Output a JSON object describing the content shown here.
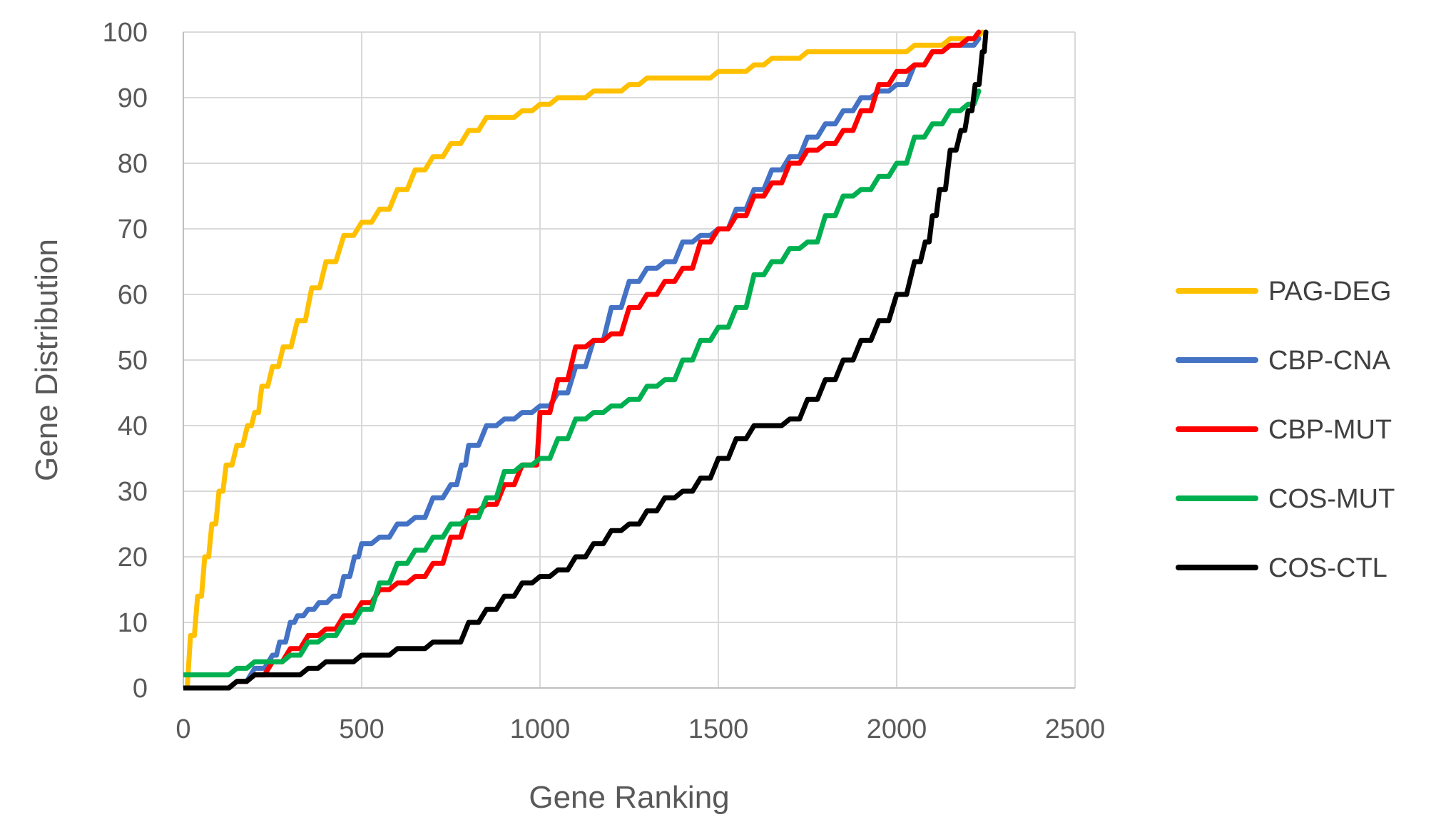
{
  "chart_data": {
    "type": "line",
    "title": "",
    "xlabel": "Gene Ranking",
    "ylabel": "Gene Distribution",
    "xlim": [
      0,
      2500
    ],
    "ylim": [
      0,
      100
    ],
    "xticks": [
      0,
      500,
      1000,
      1500,
      2000,
      2500
    ],
    "yticks": [
      0,
      10,
      20,
      30,
      40,
      50,
      60,
      70,
      80,
      90,
      100
    ],
    "grid": true,
    "legend_position": "right",
    "series": [
      {
        "name": "PAG-DEG",
        "color": "#FFC000",
        "x": [
          0,
          20,
          40,
          60,
          80,
          100,
          120,
          150,
          180,
          200,
          220,
          250,
          280,
          320,
          360,
          400,
          450,
          500,
          550,
          600,
          650,
          700,
          750,
          800,
          850,
          900,
          950,
          1000,
          1050,
          1100,
          1150,
          1200,
          1250,
          1300,
          1350,
          1400,
          1450,
          1500,
          1550,
          1600,
          1650,
          1700,
          1750,
          1800,
          1850,
          1900,
          1950,
          2000,
          2050,
          2100,
          2150,
          2200,
          2240
        ],
        "y": [
          0,
          8,
          14,
          20,
          25,
          30,
          34,
          37,
          40,
          42,
          46,
          49,
          52,
          56,
          61,
          65,
          69,
          71,
          73,
          76,
          79,
          81,
          83,
          85,
          87,
          87,
          88,
          89,
          90,
          90,
          91,
          91,
          92,
          93,
          93,
          93,
          93,
          94,
          94,
          95,
          96,
          96,
          97,
          97,
          97,
          97,
          97,
          97,
          98,
          98,
          99,
          99,
          100
        ]
      },
      {
        "name": "CBP-CNA",
        "color": "#4472C4",
        "x": [
          0,
          50,
          100,
          150,
          200,
          250,
          270,
          300,
          320,
          350,
          380,
          420,
          450,
          480,
          500,
          550,
          600,
          650,
          700,
          750,
          780,
          800,
          850,
          900,
          950,
          1000,
          1050,
          1100,
          1150,
          1200,
          1250,
          1300,
          1350,
          1400,
          1450,
          1500,
          1550,
          1600,
          1650,
          1700,
          1750,
          1800,
          1850,
          1900,
          1950,
          2000,
          2050,
          2100,
          2150,
          2200,
          2230
        ],
        "y": [
          0,
          0,
          0,
          1,
          3,
          5,
          7,
          10,
          11,
          12,
          13,
          14,
          17,
          20,
          22,
          23,
          25,
          26,
          29,
          31,
          34,
          37,
          40,
          41,
          42,
          43,
          45,
          49,
          53,
          58,
          62,
          64,
          65,
          68,
          69,
          70,
          73,
          76,
          79,
          81,
          84,
          86,
          88,
          90,
          91,
          92,
          95,
          97,
          98,
          98,
          99
        ]
      },
      {
        "name": "CBP-MUT",
        "color": "#FF0000",
        "x": [
          0,
          50,
          100,
          150,
          200,
          250,
          300,
          350,
          400,
          450,
          500,
          550,
          600,
          650,
          700,
          750,
          800,
          850,
          900,
          950,
          980,
          1000,
          1050,
          1100,
          1150,
          1200,
          1250,
          1300,
          1350,
          1400,
          1450,
          1500,
          1550,
          1600,
          1650,
          1700,
          1750,
          1800,
          1850,
          1900,
          1950,
          2000,
          2050,
          2100,
          2150,
          2200,
          2230
        ],
        "y": [
          0,
          0,
          0,
          1,
          2,
          4,
          6,
          8,
          9,
          11,
          13,
          15,
          16,
          17,
          19,
          23,
          27,
          28,
          31,
          34,
          34,
          42,
          47,
          52,
          53,
          54,
          58,
          60,
          62,
          64,
          68,
          70,
          72,
          75,
          77,
          80,
          82,
          83,
          85,
          88,
          92,
          94,
          95,
          97,
          98,
          99,
          100
        ]
      },
      {
        "name": "COS-MUT",
        "color": "#00B050",
        "x": [
          0,
          50,
          100,
          150,
          200,
          250,
          300,
          350,
          400,
          450,
          500,
          550,
          600,
          650,
          700,
          750,
          800,
          850,
          900,
          950,
          1000,
          1050,
          1100,
          1150,
          1200,
          1250,
          1300,
          1350,
          1400,
          1450,
          1500,
          1550,
          1600,
          1650,
          1700,
          1750,
          1800,
          1850,
          1900,
          1950,
          2000,
          2050,
          2100,
          2150,
          2200,
          2230
        ],
        "y": [
          2,
          2,
          2,
          3,
          4,
          4,
          5,
          7,
          8,
          10,
          12,
          16,
          19,
          21,
          23,
          25,
          26,
          29,
          33,
          34,
          35,
          38,
          41,
          42,
          43,
          44,
          46,
          47,
          50,
          53,
          55,
          58,
          63,
          65,
          67,
          68,
          72,
          75,
          76,
          78,
          80,
          84,
          86,
          88,
          89,
          91
        ]
      },
      {
        "name": "COS-CTL",
        "color": "#000000",
        "x": [
          0,
          50,
          100,
          150,
          200,
          250,
          300,
          350,
          400,
          450,
          500,
          550,
          600,
          650,
          700,
          750,
          800,
          850,
          900,
          950,
          1000,
          1050,
          1100,
          1150,
          1200,
          1250,
          1300,
          1350,
          1400,
          1450,
          1500,
          1550,
          1600,
          1650,
          1700,
          1750,
          1800,
          1850,
          1900,
          1950,
          2000,
          2050,
          2080,
          2100,
          2120,
          2150,
          2180,
          2200,
          2220,
          2240,
          2250
        ],
        "y": [
          0,
          0,
          0,
          1,
          2,
          2,
          2,
          3,
          4,
          4,
          5,
          5,
          6,
          6,
          7,
          7,
          10,
          12,
          14,
          16,
          17,
          18,
          20,
          22,
          24,
          25,
          27,
          29,
          30,
          32,
          35,
          38,
          40,
          40,
          41,
          44,
          47,
          50,
          53,
          56,
          60,
          65,
          68,
          72,
          76,
          82,
          85,
          88,
          92,
          97,
          100
        ]
      }
    ]
  }
}
